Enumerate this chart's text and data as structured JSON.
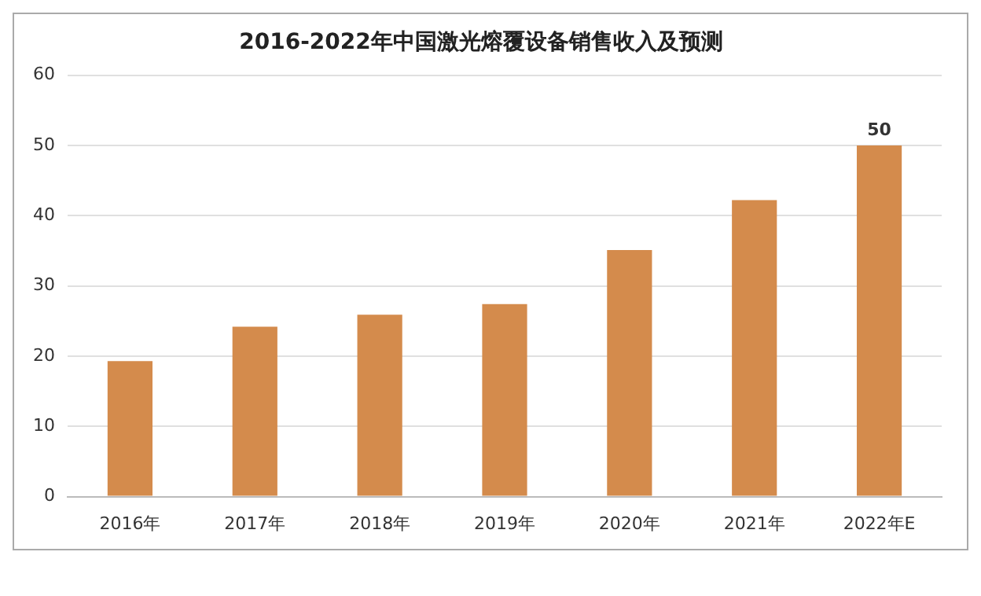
{
  "chart_data": {
    "type": "bar",
    "title": "2016-2022年中国激光熔覆设备销售收入及预测",
    "categories": [
      "2016年",
      "2017年",
      "2018年",
      "2019年",
      "2020年",
      "2021年",
      "2022年E"
    ],
    "values": [
      19.3,
      24.2,
      25.9,
      27.4,
      35.1,
      42.2,
      50
    ],
    "value_labels": [
      null,
      null,
      null,
      null,
      null,
      null,
      "50"
    ],
    "color": "#d48b4c",
    "ylim": [
      0,
      60
    ],
    "yticks": [
      0,
      10,
      20,
      30,
      40,
      50,
      60
    ],
    "grid": "y",
    "legend": false
  }
}
